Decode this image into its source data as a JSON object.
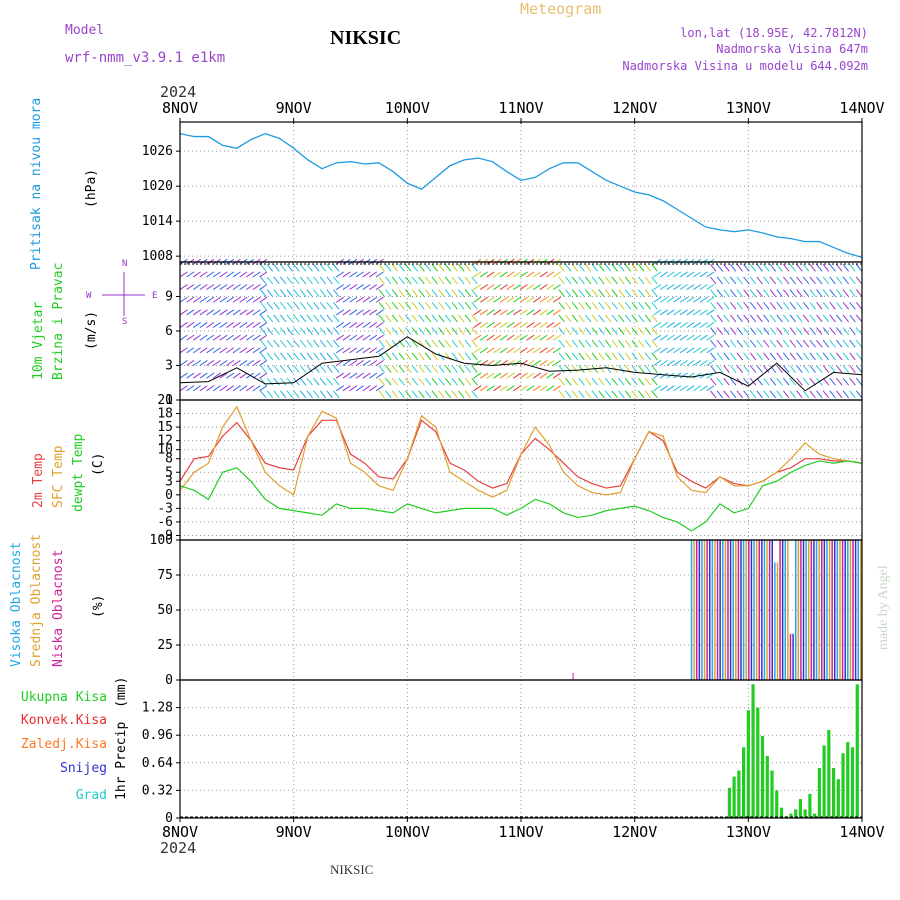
{
  "header": {
    "model_label": "Model",
    "model_name": "wrf-nmm_v3.9.1  e1km",
    "station": "NIKSIC",
    "meteogram": "Meteogram",
    "coords": "lon,lat (18.95E, 42.7812N)",
    "elevation": "Nadmorska Visina 647m",
    "model_elevation": "Nadmorska Visina u modelu 644.092m",
    "year_top": "2024",
    "year_bottom": "2024",
    "footer": "NIKSIC",
    "credit": "made by Angel"
  },
  "colors": {
    "pressure": "#1e9be0",
    "temp2m": "#e84040",
    "sfc": "#e0a030",
    "dewpt": "#22cc22",
    "high_cloud": "#22a8e8",
    "mid_cloud": "#e0a030",
    "low_cloud": "#cc2299",
    "total_precip": "#22cc22",
    "conv_precip": "#e83030",
    "frozen": "#ff7722",
    "snow": "#3333cc",
    "hail": "#22cccc",
    "wind_purple": "#9933cc"
  },
  "chart_data": [
    {
      "type": "line",
      "panel": "pressure",
      "ylabel": [
        "Pritisak na nivou mora",
        "(hPa)"
      ],
      "x_ticks": [
        "8NOV",
        "9NOV",
        "10NOV",
        "11NOV",
        "12NOV",
        "13NOV",
        "14NOV"
      ],
      "y_ticks": [
        1008,
        1014,
        1020,
        1026
      ],
      "ylim": [
        1007,
        1031
      ],
      "x": [
        0,
        3,
        6,
        9,
        12,
        15,
        18,
        21,
        24,
        27,
        30,
        33,
        36,
        39,
        42,
        45,
        48,
        51,
        54,
        57,
        60,
        63,
        66,
        69,
        72,
        75,
        78,
        81,
        84,
        87,
        90,
        93,
        96,
        99,
        102,
        105,
        108,
        111,
        114,
        117,
        120,
        123,
        126,
        129,
        132,
        135,
        138,
        141,
        144
      ],
      "values": [
        1029,
        1028.5,
        1028.5,
        1027,
        1026.5,
        1028,
        1029,
        1028.2,
        1026.5,
        1024.5,
        1023,
        1024,
        1024.2,
        1023.8,
        1024,
        1022.5,
        1020.5,
        1019.5,
        1021.5,
        1023.5,
        1024.5,
        1024.8,
        1024.2,
        1022.5,
        1021,
        1021.5,
        1023,
        1024,
        1024,
        1022.5,
        1021,
        1020,
        1019,
        1018.5,
        1017.5,
        1016,
        1014.5,
        1013,
        1012.5,
        1012.2,
        1012.5,
        1012,
        1011.3,
        1011,
        1010.5,
        1010.5,
        1009.5,
        1008.5,
        1007.8
      ]
    },
    {
      "type": "line",
      "panel": "wind",
      "ylabel": [
        "10m Vjetar",
        "Brzina i Pravac",
        "(m/s)"
      ],
      "compass": [
        "N",
        "S",
        "E",
        "W"
      ],
      "y_ticks": [
        0,
        3,
        6,
        9
      ],
      "ylim": [
        0,
        12
      ],
      "x": [
        0,
        6,
        12,
        18,
        24,
        30,
        36,
        42,
        48,
        54,
        60,
        66,
        72,
        78,
        84,
        90,
        96,
        102,
        108,
        114,
        120,
        126,
        132,
        138,
        144
      ],
      "values": [
        1.5,
        1.6,
        2.8,
        1.4,
        1.5,
        3.2,
        3.5,
        3.8,
        5.5,
        4.0,
        3.2,
        3.0,
        3.2,
        2.5,
        2.6,
        2.8,
        2.4,
        2.2,
        2.0,
        2.4,
        1.2,
        3.2,
        0.8,
        2.4,
        2.2
      ]
    },
    {
      "type": "line",
      "panel": "temperature",
      "ylabel": [
        "2m Temp",
        "SFC Temp",
        "dewpt Temp",
        "(C)"
      ],
      "y_ticks": [
        -9,
        -6,
        -3,
        0,
        3,
        5,
        8,
        10,
        12,
        15,
        18,
        21
      ],
      "ylim": [
        -10,
        21
      ],
      "x": [
        0,
        3,
        6,
        9,
        12,
        15,
        18,
        21,
        24,
        27,
        30,
        33,
        36,
        39,
        42,
        45,
        48,
        51,
        54,
        57,
        60,
        63,
        66,
        69,
        72,
        75,
        78,
        81,
        84,
        87,
        90,
        93,
        96,
        99,
        102,
        105,
        108,
        111,
        114,
        117,
        120,
        123,
        126,
        129,
        132,
        135,
        138,
        141,
        144
      ],
      "series": [
        {
          "name": "2m Temp",
          "values": [
            3,
            8,
            8.5,
            13,
            16,
            12,
            7,
            6,
            5.5,
            13,
            16.5,
            16.5,
            9,
            7,
            4,
            3.5,
            8,
            16.5,
            14,
            7,
            5.5,
            3,
            1.5,
            2.5,
            9,
            12.5,
            10,
            7,
            4,
            2.5,
            1.5,
            2,
            8,
            14,
            12,
            5,
            3,
            1.5,
            4,
            2.5,
            2,
            3,
            5,
            6,
            8,
            8,
            7.5,
            7.5,
            7
          ]
        },
        {
          "name": "SFC Temp",
          "values": [
            1,
            5,
            7,
            15,
            19.5,
            12,
            5,
            2,
            0,
            13,
            18.5,
            17,
            7,
            5,
            2,
            1,
            8,
            17.5,
            15,
            5,
            3,
            1,
            -0.5,
            1,
            9,
            15,
            11,
            5,
            2,
            0.5,
            0,
            0.5,
            8,
            14,
            13,
            4,
            1,
            0.5,
            4,
            2,
            2,
            3,
            5,
            8,
            11.5,
            9,
            8,
            7.5,
            7
          ]
        },
        {
          "name": "dewpt Temp",
          "values": [
            2,
            1,
            -1,
            5,
            6,
            3,
            -1,
            -3,
            -3.5,
            -4,
            -4.5,
            -2,
            -3,
            -3,
            -3.5,
            -4,
            -2,
            -3,
            -4,
            -3.5,
            -3,
            -3,
            -3,
            -4.5,
            -3,
            -1,
            -2,
            -4,
            -5,
            -4.5,
            -3.5,
            -3,
            -2.5,
            -3.5,
            -5,
            -6,
            -8,
            -6,
            -2,
            -4,
            -3,
            2,
            3,
            5,
            6.5,
            7.5,
            7,
            7.5,
            7
          ]
        }
      ]
    },
    {
      "type": "bar",
      "panel": "cloud",
      "ylabel": [
        "Visoka Oblacnost",
        "Srednja Oblacnost",
        "Niska Oblacnost",
        "(%)"
      ],
      "y_ticks": [
        0,
        25,
        50,
        75,
        100
      ],
      "ylim": [
        0,
        100
      ],
      "x_start": 108,
      "x_end": 144,
      "values_pct": 100,
      "gaps_pct": [
        [
          126,
          84
        ],
        [
          129,
          33
        ]
      ],
      "small_spike": {
        "x": 83,
        "value": 5
      }
    },
    {
      "type": "bar",
      "panel": "precip",
      "ylabel": [
        "1hr Precip",
        "(mm)"
      ],
      "legend": [
        "Ukupna Kisa",
        "Konvek.Kisa",
        "Zaledj.Kisa",
        "Snijeg",
        "Grad"
      ],
      "y_ticks": [
        0,
        0.32,
        0.64,
        0.96,
        1.28
      ],
      "ylim": [
        0,
        1.6
      ],
      "x": [
        116,
        117,
        118,
        119,
        120,
        121,
        122,
        123,
        124,
        125,
        126,
        127,
        128,
        129,
        130,
        131,
        132,
        133,
        134,
        135,
        136,
        137,
        138,
        139,
        140,
        141,
        142,
        143
      ],
      "values": [
        0.35,
        0.48,
        0.55,
        0.82,
        1.25,
        1.55,
        1.28,
        0.95,
        0.72,
        0.55,
        0.32,
        0.12,
        0.02,
        0.05,
        0.1,
        0.22,
        0.1,
        0.28,
        0.05,
        0.58,
        0.84,
        1.02,
        0.58,
        0.45,
        0.75,
        0.88,
        0.82,
        1.55
      ]
    }
  ]
}
